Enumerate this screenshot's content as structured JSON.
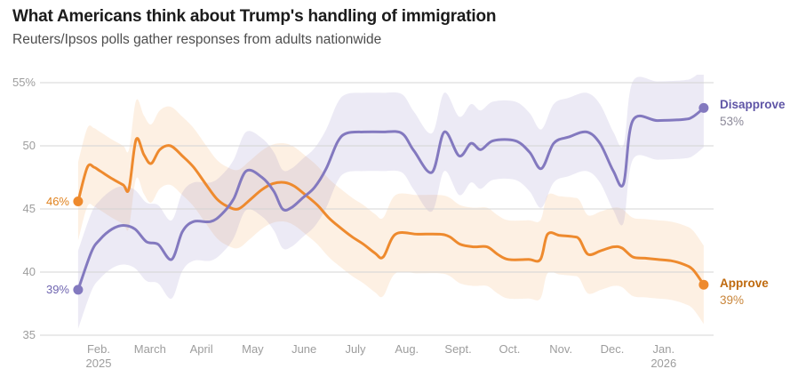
{
  "header": {
    "title": "What Americans think about Trump's handling of immigration",
    "subtitle": "Reuters/Ipsos polls gather responses from adults nationwide"
  },
  "chart_data": {
    "type": "line",
    "title": "What Americans think about Trump's handling of immigration",
    "subtitle": "Reuters/Ipsos polls gather responses from adults nationwide",
    "unit": "percent of adults",
    "x_axis": {
      "start": "late January 2025",
      "end": "late January 2026",
      "months": [
        {
          "label": "Feb.",
          "sublabel": "2025"
        },
        {
          "label": "March"
        },
        {
          "label": "April"
        },
        {
          "label": "May"
        },
        {
          "label": "June"
        },
        {
          "label": "July"
        },
        {
          "label": "Aug."
        },
        {
          "label": "Sept."
        },
        {
          "label": "Oct."
        },
        {
          "label": "Nov."
        },
        {
          "label": "Dec."
        },
        {
          "label": "Jan.",
          "sublabel": "2026"
        }
      ]
    },
    "y_axis": {
      "tick_values": [
        55,
        50,
        45,
        40,
        35
      ],
      "tick_labels": [
        "55%",
        "50",
        "45",
        "40",
        "35"
      ],
      "range": [
        35,
        55
      ],
      "grid_color": "#d4d4d4",
      "tick_text_color": "#9d9d9d"
    },
    "legend_position": "right-of-line-ends",
    "grid": "horizontal only",
    "series": [
      {
        "name": "Disapprove",
        "start_value_label": "39%",
        "end_value_label": "53%",
        "end_value": 53,
        "line_color": "#8379bf",
        "band_color": "rgba(134,124,194,0.16)",
        "name_label_color": "#5f55a6",
        "end_value_label_color": "#8b8898",
        "start_label_color": "#6f65b0",
        "ci_half_width": 3.1,
        "points_format": "[months_after_feb1_2025, percent]",
        "points": [
          [
            -0.4,
            38.6
          ],
          [
            -0.14,
            41.6
          ],
          [
            0.03,
            42.6
          ],
          [
            0.26,
            43.4
          ],
          [
            0.48,
            43.7
          ],
          [
            0.71,
            43.4
          ],
          [
            0.93,
            42.4
          ],
          [
            1.16,
            42.2
          ],
          [
            1.42,
            41.0
          ],
          [
            1.63,
            43.2
          ],
          [
            1.85,
            44.0
          ],
          [
            2.18,
            44.0
          ],
          [
            2.4,
            44.6
          ],
          [
            2.63,
            45.8
          ],
          [
            2.87,
            48.0
          ],
          [
            3.18,
            47.5
          ],
          [
            3.41,
            46.4
          ],
          [
            3.58,
            45.0
          ],
          [
            3.75,
            45.1
          ],
          [
            3.98,
            45.9
          ],
          [
            4.2,
            46.7
          ],
          [
            4.43,
            48.2
          ],
          [
            4.65,
            50.3
          ],
          [
            4.83,
            51.0
          ],
          [
            5.17,
            51.1
          ],
          [
            5.52,
            51.1
          ],
          [
            5.9,
            51.0
          ],
          [
            6.14,
            49.6
          ],
          [
            6.49,
            47.9
          ],
          [
            6.73,
            51.1
          ],
          [
            7.02,
            49.2
          ],
          [
            7.25,
            50.2
          ],
          [
            7.44,
            49.7
          ],
          [
            7.68,
            50.4
          ],
          [
            8.11,
            50.4
          ],
          [
            8.39,
            49.5
          ],
          [
            8.62,
            48.2
          ],
          [
            8.86,
            50.2
          ],
          [
            9.15,
            50.7
          ],
          [
            9.5,
            51.1
          ],
          [
            9.76,
            50.2
          ],
          [
            10.02,
            48.0
          ],
          [
            10.22,
            47.0
          ],
          [
            10.4,
            52.0
          ],
          [
            10.88,
            52.0
          ],
          [
            11.4,
            52.1
          ],
          [
            11.57,
            52.3
          ],
          [
            11.78,
            53.0
          ]
        ]
      },
      {
        "name": "Approve",
        "start_value_label": "46%",
        "end_value_label": "39%",
        "end_value": 39,
        "line_color": "#ee8a2e",
        "band_color": "rgba(240,150,60,0.14)",
        "name_label_color": "#bf6a0e",
        "end_value_label_color": "#c9863b",
        "start_label_color": "#e0811c",
        "ci_half_width": 3.1,
        "points_format": "[months_after_feb1_2025, percent]",
        "points": [
          [
            -0.4,
            45.6
          ],
          [
            -0.22,
            48.3
          ],
          [
            -0.09,
            48.3
          ],
          [
            0.03,
            48.0
          ],
          [
            0.26,
            47.4
          ],
          [
            0.48,
            46.9
          ],
          [
            0.59,
            46.6
          ],
          [
            0.73,
            50.5
          ],
          [
            0.88,
            49.3
          ],
          [
            1.02,
            48.6
          ],
          [
            1.19,
            49.7
          ],
          [
            1.4,
            50.0
          ],
          [
            1.63,
            49.2
          ],
          [
            1.85,
            48.3
          ],
          [
            2.08,
            47.0
          ],
          [
            2.3,
            45.8
          ],
          [
            2.51,
            45.2
          ],
          [
            2.72,
            45.0
          ],
          [
            2.94,
            45.7
          ],
          [
            3.17,
            46.5
          ],
          [
            3.39,
            47.0
          ],
          [
            3.62,
            47.1
          ],
          [
            3.81,
            46.8
          ],
          [
            4.03,
            46.1
          ],
          [
            4.26,
            45.3
          ],
          [
            4.48,
            44.3
          ],
          [
            4.71,
            43.5
          ],
          [
            4.93,
            42.8
          ],
          [
            5.16,
            42.2
          ],
          [
            5.38,
            41.5
          ],
          [
            5.54,
            41.2
          ],
          [
            5.78,
            43.0
          ],
          [
            6.21,
            43.0
          ],
          [
            6.64,
            43.0
          ],
          [
            6.83,
            42.8
          ],
          [
            7.04,
            42.2
          ],
          [
            7.3,
            42.0
          ],
          [
            7.56,
            42.0
          ],
          [
            7.77,
            41.4
          ],
          [
            7.98,
            41.0
          ],
          [
            8.37,
            41.0
          ],
          [
            8.6,
            41.0
          ],
          [
            8.74,
            43.0
          ],
          [
            8.98,
            42.9
          ],
          [
            9.24,
            42.8
          ],
          [
            9.36,
            42.6
          ],
          [
            9.53,
            41.4
          ],
          [
            9.78,
            41.7
          ],
          [
            10.02,
            42.0
          ],
          [
            10.19,
            41.9
          ],
          [
            10.4,
            41.2
          ],
          [
            10.64,
            41.1
          ],
          [
            10.88,
            41.0
          ],
          [
            11.14,
            40.9
          ],
          [
            11.4,
            40.6
          ],
          [
            11.57,
            40.2
          ],
          [
            11.78,
            39.0
          ]
        ]
      }
    ]
  }
}
